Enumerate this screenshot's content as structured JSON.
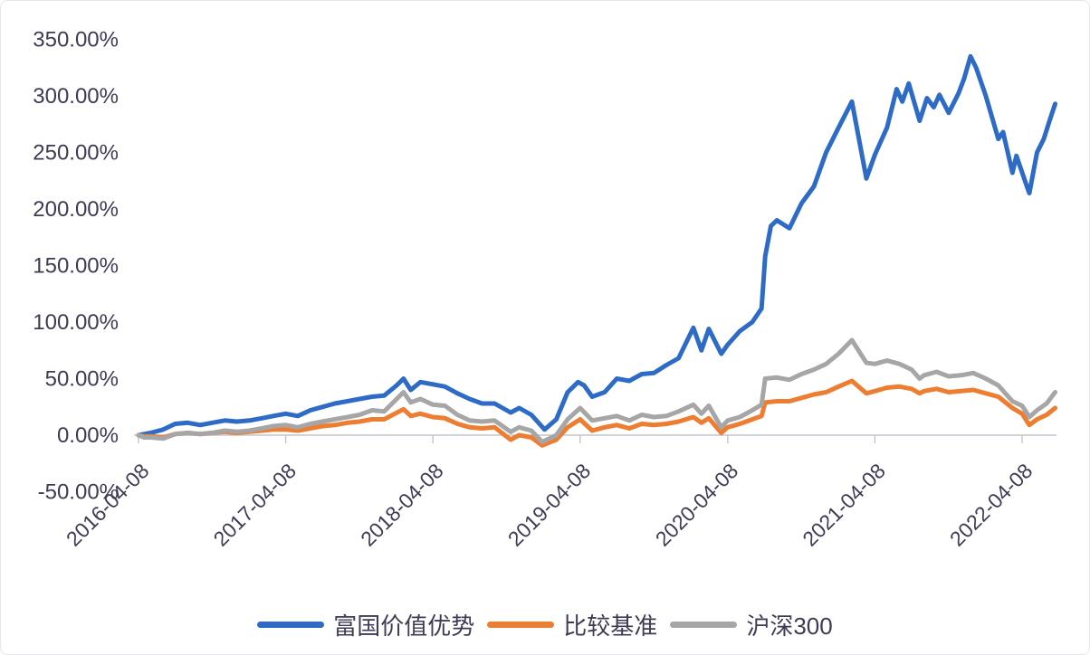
{
  "chart_data": {
    "type": "line",
    "title": "",
    "value_unit": "%",
    "colors": {
      "text": "#3f3b54",
      "axis": "#c3c3cb",
      "background": "#ffffff"
    },
    "x_axis": {
      "tick_labels": [
        "2016-04-08",
        "2017-04-08",
        "2018-04-08",
        "2019-04-08",
        "2020-04-08",
        "2021-04-08",
        "2022-04-08"
      ],
      "tick_dates": [
        "2016-04-08",
        "2017-04-08",
        "2018-04-08",
        "2019-04-08",
        "2020-04-08",
        "2021-04-08",
        "2022-04-08"
      ],
      "label_rotation_deg": -45,
      "range_start": "2016-04-08",
      "range_end": "2022-06-29"
    },
    "y_axis": {
      "min": -50,
      "max": 350,
      "step": 50,
      "ticks": [
        {
          "label": "350.00%",
          "value": 350
        },
        {
          "label": "300.00%",
          "value": 300
        },
        {
          "label": "250.00%",
          "value": 250
        },
        {
          "label": "200.00%",
          "value": 200
        },
        {
          "label": "150.00%",
          "value": 150
        },
        {
          "label": "100.00%",
          "value": 100
        },
        {
          "label": "50.00%",
          "value": 50
        },
        {
          "label": "0.00%",
          "value": 0
        },
        {
          "label": "-50.00%",
          "value": -50
        }
      ],
      "gridlines": false
    },
    "legend": {
      "position": "bottom",
      "items": [
        {
          "label": "富国价值优势",
          "color": "#2e6bc6"
        },
        {
          "label": "比较基准",
          "color": "#ed7d31"
        },
        {
          "label": "沪深300",
          "color": "#a6a6a6"
        }
      ]
    },
    "series": [
      {
        "name": "富国价值优势",
        "color": "#2e6bc6",
        "points": [
          [
            "2016-04-08",
            0
          ],
          [
            "2016-04-22",
            1
          ],
          [
            "2016-05-08",
            2
          ],
          [
            "2016-06-08",
            5
          ],
          [
            "2016-07-08",
            10
          ],
          [
            "2016-08-08",
            11
          ],
          [
            "2016-09-08",
            9
          ],
          [
            "2016-10-08",
            11
          ],
          [
            "2016-11-08",
            13
          ],
          [
            "2016-12-08",
            12
          ],
          [
            "2017-01-08",
            13
          ],
          [
            "2017-02-08",
            15
          ],
          [
            "2017-03-08",
            17
          ],
          [
            "2017-04-08",
            19
          ],
          [
            "2017-05-08",
            17
          ],
          [
            "2017-06-08",
            22
          ],
          [
            "2017-07-08",
            25
          ],
          [
            "2017-08-08",
            28
          ],
          [
            "2017-09-08",
            30
          ],
          [
            "2017-10-08",
            32
          ],
          [
            "2017-11-08",
            34
          ],
          [
            "2017-12-08",
            35
          ],
          [
            "2018-01-08",
            44
          ],
          [
            "2018-01-25",
            50
          ],
          [
            "2018-02-12",
            40
          ],
          [
            "2018-03-08",
            47
          ],
          [
            "2018-04-08",
            45
          ],
          [
            "2018-05-08",
            43
          ],
          [
            "2018-06-08",
            37
          ],
          [
            "2018-07-08",
            32
          ],
          [
            "2018-08-08",
            28
          ],
          [
            "2018-09-08",
            28
          ],
          [
            "2018-10-18",
            20
          ],
          [
            "2018-11-08",
            24
          ],
          [
            "2018-12-08",
            18
          ],
          [
            "2019-01-10",
            5
          ],
          [
            "2019-02-08",
            14
          ],
          [
            "2019-03-08",
            38
          ],
          [
            "2019-04-03",
            47
          ],
          [
            "2019-04-18",
            44
          ],
          [
            "2019-05-08",
            34
          ],
          [
            "2019-06-08",
            38
          ],
          [
            "2019-07-08",
            50
          ],
          [
            "2019-08-08",
            48
          ],
          [
            "2019-09-08",
            54
          ],
          [
            "2019-10-08",
            55
          ],
          [
            "2019-11-08",
            62
          ],
          [
            "2019-12-08",
            68
          ],
          [
            "2020-01-14",
            95
          ],
          [
            "2020-02-03",
            75
          ],
          [
            "2020-02-21",
            94
          ],
          [
            "2020-03-23",
            72
          ],
          [
            "2020-04-08",
            80
          ],
          [
            "2020-05-08",
            92
          ],
          [
            "2020-06-08",
            100
          ],
          [
            "2020-07-01",
            112
          ],
          [
            "2020-07-10",
            158
          ],
          [
            "2020-07-24",
            185
          ],
          [
            "2020-08-08",
            190
          ],
          [
            "2020-09-08",
            183
          ],
          [
            "2020-10-08",
            205
          ],
          [
            "2020-11-08",
            220
          ],
          [
            "2020-12-08",
            250
          ],
          [
            "2021-01-08",
            272
          ],
          [
            "2021-02-10",
            295
          ],
          [
            "2021-03-18",
            227
          ],
          [
            "2021-04-08",
            248
          ],
          [
            "2021-05-08",
            272
          ],
          [
            "2021-06-01",
            306
          ],
          [
            "2021-06-15",
            295
          ],
          [
            "2021-07-01",
            311
          ],
          [
            "2021-07-28",
            278
          ],
          [
            "2021-08-15",
            298
          ],
          [
            "2021-09-01",
            290
          ],
          [
            "2021-09-15",
            301
          ],
          [
            "2021-10-08",
            285
          ],
          [
            "2021-11-01",
            302
          ],
          [
            "2021-11-15",
            315
          ],
          [
            "2021-12-01",
            335
          ],
          [
            "2021-12-15",
            325
          ],
          [
            "2022-01-08",
            300
          ],
          [
            "2022-02-08",
            262
          ],
          [
            "2022-02-20",
            268
          ],
          [
            "2022-03-15",
            232
          ],
          [
            "2022-03-25",
            247
          ],
          [
            "2022-04-20",
            220
          ],
          [
            "2022-04-26",
            214
          ],
          [
            "2022-05-15",
            250
          ],
          [
            "2022-06-01",
            262
          ],
          [
            "2022-06-15",
            278
          ],
          [
            "2022-06-29",
            293
          ]
        ]
      },
      {
        "name": "比较基准",
        "color": "#ed7d31",
        "points": [
          [
            "2016-04-08",
            0
          ],
          [
            "2016-04-22",
            -1
          ],
          [
            "2016-05-08",
            -1
          ],
          [
            "2016-06-08",
            -2
          ],
          [
            "2016-07-08",
            1
          ],
          [
            "2016-08-08",
            2
          ],
          [
            "2016-09-08",
            1
          ],
          [
            "2016-10-08",
            2
          ],
          [
            "2016-11-08",
            3
          ],
          [
            "2016-12-08",
            2
          ],
          [
            "2017-01-08",
            3
          ],
          [
            "2017-02-08",
            4
          ],
          [
            "2017-03-08",
            5
          ],
          [
            "2017-04-08",
            5
          ],
          [
            "2017-05-08",
            4
          ],
          [
            "2017-06-08",
            6
          ],
          [
            "2017-07-08",
            8
          ],
          [
            "2017-08-08",
            9
          ],
          [
            "2017-09-08",
            11
          ],
          [
            "2017-10-08",
            12
          ],
          [
            "2017-11-08",
            14
          ],
          [
            "2017-12-08",
            14
          ],
          [
            "2018-01-25",
            23
          ],
          [
            "2018-02-12",
            17
          ],
          [
            "2018-03-08",
            19
          ],
          [
            "2018-04-08",
            16
          ],
          [
            "2018-05-08",
            15
          ],
          [
            "2018-06-08",
            10
          ],
          [
            "2018-07-08",
            7
          ],
          [
            "2018-08-08",
            6
          ],
          [
            "2018-09-08",
            7
          ],
          [
            "2018-10-18",
            -4
          ],
          [
            "2018-11-08",
            0
          ],
          [
            "2018-12-08",
            -2
          ],
          [
            "2019-01-04",
            -9
          ],
          [
            "2019-02-08",
            -4
          ],
          [
            "2019-03-08",
            7
          ],
          [
            "2019-04-08",
            14
          ],
          [
            "2019-05-08",
            4
          ],
          [
            "2019-06-08",
            7
          ],
          [
            "2019-07-08",
            9
          ],
          [
            "2019-08-08",
            6
          ],
          [
            "2019-09-08",
            10
          ],
          [
            "2019-10-08",
            9
          ],
          [
            "2019-11-08",
            10
          ],
          [
            "2019-12-08",
            12
          ],
          [
            "2020-01-14",
            16
          ],
          [
            "2020-02-03",
            11
          ],
          [
            "2020-02-21",
            15
          ],
          [
            "2020-03-23",
            2
          ],
          [
            "2020-04-08",
            7
          ],
          [
            "2020-05-08",
            10
          ],
          [
            "2020-06-08",
            14
          ],
          [
            "2020-07-01",
            17
          ],
          [
            "2020-07-10",
            29
          ],
          [
            "2020-08-08",
            30
          ],
          [
            "2020-09-08",
            30
          ],
          [
            "2020-10-08",
            33
          ],
          [
            "2020-11-08",
            36
          ],
          [
            "2020-12-08",
            38
          ],
          [
            "2021-01-08",
            43
          ],
          [
            "2021-02-10",
            48
          ],
          [
            "2021-03-18",
            37
          ],
          [
            "2021-04-08",
            39
          ],
          [
            "2021-05-08",
            42
          ],
          [
            "2021-06-08",
            43
          ],
          [
            "2021-07-08",
            41
          ],
          [
            "2021-07-28",
            37
          ],
          [
            "2021-08-08",
            39
          ],
          [
            "2021-09-08",
            41
          ],
          [
            "2021-10-08",
            38
          ],
          [
            "2021-11-08",
            39
          ],
          [
            "2021-12-08",
            40
          ],
          [
            "2022-01-08",
            37
          ],
          [
            "2022-02-08",
            34
          ],
          [
            "2022-03-15",
            24
          ],
          [
            "2022-04-08",
            19
          ],
          [
            "2022-04-26",
            9
          ],
          [
            "2022-05-15",
            14
          ],
          [
            "2022-06-08",
            18
          ],
          [
            "2022-06-29",
            24
          ]
        ]
      },
      {
        "name": "沪深300",
        "color": "#a6a6a6",
        "points": [
          [
            "2016-04-08",
            0
          ],
          [
            "2016-04-22",
            -2
          ],
          [
            "2016-05-08",
            -2
          ],
          [
            "2016-06-08",
            -3
          ],
          [
            "2016-07-08",
            1
          ],
          [
            "2016-08-08",
            2
          ],
          [
            "2016-09-08",
            1
          ],
          [
            "2016-10-08",
            2
          ],
          [
            "2016-11-08",
            4
          ],
          [
            "2016-12-08",
            3
          ],
          [
            "2017-01-08",
            4
          ],
          [
            "2017-02-08",
            6
          ],
          [
            "2017-03-08",
            8
          ],
          [
            "2017-04-08",
            9
          ],
          [
            "2017-05-08",
            7
          ],
          [
            "2017-06-08",
            10
          ],
          [
            "2017-07-08",
            12
          ],
          [
            "2017-08-08",
            14
          ],
          [
            "2017-09-08",
            16
          ],
          [
            "2017-10-08",
            18
          ],
          [
            "2017-11-08",
            22
          ],
          [
            "2017-12-08",
            21
          ],
          [
            "2018-01-25",
            38
          ],
          [
            "2018-02-12",
            29
          ],
          [
            "2018-03-08",
            32
          ],
          [
            "2018-04-08",
            27
          ],
          [
            "2018-05-08",
            26
          ],
          [
            "2018-06-08",
            18
          ],
          [
            "2018-07-08",
            13
          ],
          [
            "2018-08-08",
            12
          ],
          [
            "2018-09-08",
            13
          ],
          [
            "2018-10-18",
            3
          ],
          [
            "2018-11-08",
            7
          ],
          [
            "2018-12-08",
            4
          ],
          [
            "2019-01-04",
            -6
          ],
          [
            "2019-02-08",
            0
          ],
          [
            "2019-03-08",
            14
          ],
          [
            "2019-04-08",
            24
          ],
          [
            "2019-05-08",
            13
          ],
          [
            "2019-06-08",
            15
          ],
          [
            "2019-07-08",
            17
          ],
          [
            "2019-08-08",
            13
          ],
          [
            "2019-09-08",
            18
          ],
          [
            "2019-10-08",
            16
          ],
          [
            "2019-11-08",
            17
          ],
          [
            "2019-12-08",
            21
          ],
          [
            "2020-01-14",
            27
          ],
          [
            "2020-02-03",
            19
          ],
          [
            "2020-02-21",
            26
          ],
          [
            "2020-03-23",
            7
          ],
          [
            "2020-04-08",
            13
          ],
          [
            "2020-05-08",
            16
          ],
          [
            "2020-06-08",
            22
          ],
          [
            "2020-07-01",
            27
          ],
          [
            "2020-07-10",
            50
          ],
          [
            "2020-08-08",
            51
          ],
          [
            "2020-09-08",
            49
          ],
          [
            "2020-10-08",
            54
          ],
          [
            "2020-11-08",
            58
          ],
          [
            "2020-12-08",
            63
          ],
          [
            "2021-01-08",
            72
          ],
          [
            "2021-02-10",
            84
          ],
          [
            "2021-03-18",
            64
          ],
          [
            "2021-04-08",
            63
          ],
          [
            "2021-05-08",
            66
          ],
          [
            "2021-06-08",
            63
          ],
          [
            "2021-07-08",
            58
          ],
          [
            "2021-07-28",
            50
          ],
          [
            "2021-08-08",
            53
          ],
          [
            "2021-09-08",
            56
          ],
          [
            "2021-10-08",
            52
          ],
          [
            "2021-11-08",
            53
          ],
          [
            "2021-12-08",
            55
          ],
          [
            "2022-01-08",
            50
          ],
          [
            "2022-02-08",
            44
          ],
          [
            "2022-03-15",
            30
          ],
          [
            "2022-04-08",
            26
          ],
          [
            "2022-04-26",
            16
          ],
          [
            "2022-05-15",
            22
          ],
          [
            "2022-06-08",
            28
          ],
          [
            "2022-06-29",
            38
          ]
        ]
      }
    ]
  }
}
